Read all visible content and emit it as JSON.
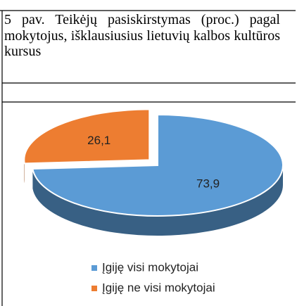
{
  "chart_data": {
    "type": "pie",
    "title": "5 pav. Teikėjų pasiskirstymas (proc.) pagal mokytojus, išklausiusius lietuvių kalbos kultūros kursus",
    "categories": [
      "Įgiję visi mokytojai",
      "Įgiję ne visi mokytojai"
    ],
    "values": [
      73.9,
      26.1
    ],
    "value_labels": [
      "73,9",
      "26,1"
    ],
    "colors": [
      "#5b9bd5",
      "#ed7d31"
    ],
    "legend": "bottom"
  }
}
